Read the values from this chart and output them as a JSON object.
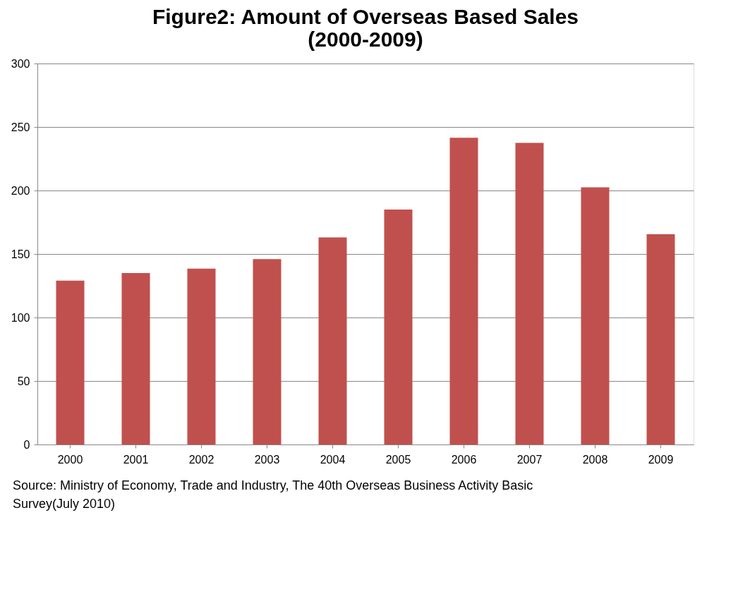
{
  "chart_data": {
    "type": "bar",
    "title": "Figure2: Amount of Overseas Based Sales (2000-2009)",
    "categories": [
      "2000",
      "2001",
      "2002",
      "2003",
      "2004",
      "2005",
      "2006",
      "2007",
      "2008",
      "2009"
    ],
    "values": [
      129,
      135,
      138.5,
      146,
      163,
      185,
      241.5,
      237.5,
      202.5,
      165.5
    ],
    "color": "#c0504d",
    "ylim": [
      0,
      300
    ],
    "yticks": [
      0,
      50,
      100,
      150,
      200,
      250,
      300
    ],
    "grid": "y",
    "annotations": [
      "Source:  Ministry of Economy, Trade and Industry, The 40th  Overseas Business Activity Basic Survey(July 2010)"
    ]
  }
}
